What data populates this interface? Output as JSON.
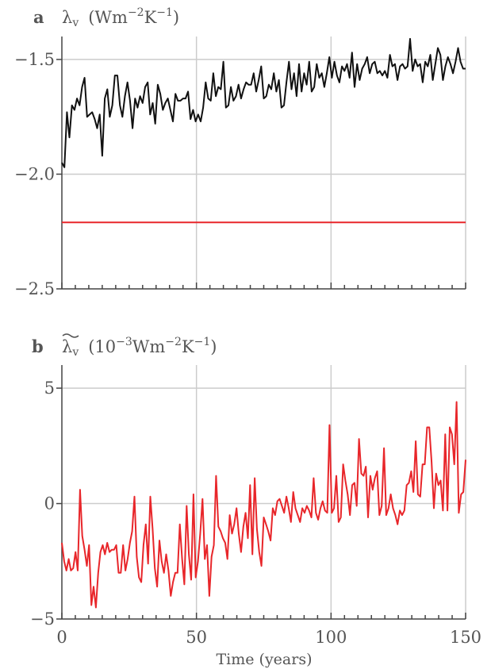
{
  "chart_data": [
    {
      "type": "line",
      "panel": "a",
      "title": "λv  (Wm−2K−1)",
      "title_parts": {
        "letter": "a",
        "symbol": "λ",
        "sub": "v",
        "unit_pre": "(Wm",
        "exp1": "−2",
        "unit_mid": "K",
        "exp2": "−1",
        "unit_post": ")"
      },
      "xlim": [
        0,
        150
      ],
      "ylim": [
        -2.5,
        -1.4
      ],
      "yticks": [
        -1.5,
        -2.0,
        -2.5
      ],
      "ytick_labels": [
        "−1.5",
        "−2.0",
        "−2.5"
      ],
      "xticks": [
        0,
        50,
        100,
        150
      ],
      "grid": true,
      "series": [
        {
          "color": "#111111",
          "values": [
            -1.95,
            -1.97,
            -1.73,
            -1.84,
            -1.7,
            -1.72,
            -1.67,
            -1.7,
            -1.62,
            -1.58,
            -1.75,
            -1.74,
            -1.73,
            -1.76,
            -1.8,
            -1.74,
            -1.92,
            -1.67,
            -1.63,
            -1.75,
            -1.7,
            -1.57,
            -1.57,
            -1.7,
            -1.75,
            -1.66,
            -1.6,
            -1.68,
            -1.8,
            -1.67,
            -1.71,
            -1.66,
            -1.69,
            -1.62,
            -1.6,
            -1.74,
            -1.69,
            -1.78,
            -1.61,
            -1.65,
            -1.72,
            -1.69,
            -1.67,
            -1.72,
            -1.77,
            -1.65,
            -1.68,
            -1.68,
            -1.67,
            -1.67,
            -1.64,
            -1.76,
            -1.72,
            -1.77,
            -1.74,
            -1.77,
            -1.71,
            -1.6,
            -1.67,
            -1.68,
            -1.56,
            -1.66,
            -1.62,
            -1.63,
            -1.51,
            -1.71,
            -1.7,
            -1.62,
            -1.68,
            -1.66,
            -1.61,
            -1.67,
            -1.63,
            -1.6,
            -1.61,
            -1.61,
            -1.56,
            -1.64,
            -1.59,
            -1.53,
            -1.67,
            -1.66,
            -1.61,
            -1.63,
            -1.56,
            -1.64,
            -1.59,
            -1.71,
            -1.7,
            -1.6,
            -1.51,
            -1.63,
            -1.56,
            -1.66,
            -1.52,
            -1.64,
            -1.56,
            -1.61,
            -1.51,
            -1.64,
            -1.62,
            -1.52,
            -1.58,
            -1.56,
            -1.62,
            -1.56,
            -1.49,
            -1.58,
            -1.51,
            -1.57,
            -1.6,
            -1.53,
            -1.55,
            -1.52,
            -1.58,
            -1.47,
            -1.62,
            -1.52,
            -1.59,
            -1.54,
            -1.52,
            -1.49,
            -1.56,
            -1.52,
            -1.51,
            -1.56,
            -1.55,
            -1.57,
            -1.55,
            -1.58,
            -1.48,
            -1.53,
            -1.52,
            -1.59,
            -1.53,
            -1.52,
            -1.54,
            -1.53,
            -1.41,
            -1.55,
            -1.5,
            -1.53,
            -1.52,
            -1.6,
            -1.51,
            -1.53,
            -1.48,
            -1.59,
            -1.52,
            -1.45,
            -1.48,
            -1.59,
            -1.53,
            -1.49,
            -1.52,
            -1.56,
            -1.51,
            -1.45,
            -1.51,
            -1.54,
            -1.54
          ]
        },
        {
          "color": "#e8262a",
          "values": [
            -2.21,
            -2.21,
            -2.21,
            -2.21,
            -2.21,
            -2.21,
            -2.21,
            -2.21,
            -2.21,
            -2.21,
            -2.21,
            -2.21,
            -2.21,
            -2.21,
            -2.21,
            -2.21,
            -2.21,
            -2.21,
            -2.21,
            -2.21,
            -2.21,
            -2.21,
            -2.21,
            -2.21,
            -2.21,
            -2.21,
            -2.21,
            -2.21,
            -2.21,
            -2.21,
            -2.21,
            -2.21,
            -2.21,
            -2.21,
            -2.21,
            -2.21,
            -2.21,
            -2.21,
            -2.21,
            -2.21,
            -2.21,
            -2.21,
            -2.21,
            -2.21,
            -2.21,
            -2.21,
            -2.21,
            -2.21,
            -2.21,
            -2.21,
            -2.21,
            -2.21,
            -2.21,
            -2.21,
            -2.21,
            -2.21,
            -2.21,
            -2.21,
            -2.21,
            -2.21,
            -2.21,
            -2.21,
            -2.21,
            -2.21,
            -2.21,
            -2.21,
            -2.21,
            -2.21,
            -2.21,
            -2.21,
            -2.21,
            -2.21,
            -2.21,
            -2.21,
            -2.21,
            -2.21,
            -2.21,
            -2.21,
            -2.21,
            -2.21,
            -2.21,
            -2.21,
            -2.21,
            -2.21,
            -2.21,
            -2.21,
            -2.21,
            -2.21,
            -2.21,
            -2.21,
            -2.21,
            -2.21,
            -2.21,
            -2.21,
            -2.21,
            -2.21,
            -2.21,
            -2.21,
            -2.21,
            -2.21,
            -2.21,
            -2.21,
            -2.21,
            -2.21,
            -2.21,
            -2.21,
            -2.21,
            -2.21,
            -2.21,
            -2.21,
            -2.21,
            -2.21,
            -2.21,
            -2.21,
            -2.21,
            -2.21,
            -2.21,
            -2.21,
            -2.21,
            -2.21,
            -2.21,
            -2.21,
            -2.21,
            -2.21,
            -2.21,
            -2.21,
            -2.21,
            -2.21,
            -2.21,
            -2.21,
            -2.21,
            -2.21,
            -2.21,
            -2.21,
            -2.21,
            -2.21,
            -2.21,
            -2.21,
            -2.21,
            -2.21,
            -2.21,
            -2.21,
            -2.21,
            -2.21,
            -2.21,
            -2.21,
            -2.21,
            -2.21,
            -2.21,
            -2.21,
            -2.21,
            -2.21,
            -2.21,
            -2.21,
            -2.21,
            -2.21,
            -2.21,
            -2.21,
            -2.21,
            -2.21
          ]
        }
      ]
    },
    {
      "type": "line",
      "panel": "b",
      "title": "λ̃v  (10−3Wm−2K−1)",
      "title_parts": {
        "letter": "b",
        "symbol": "λ",
        "sub": "v",
        "unit_pre": "(10",
        "exp0": "−3",
        "unit_a": "Wm",
        "exp1": "−2",
        "unit_mid": "K",
        "exp2": "−1",
        "unit_post": ")"
      },
      "xlabel": "Time (years)",
      "xlim": [
        0,
        150
      ],
      "ylim": [
        -5,
        6
      ],
      "yticks": [
        5,
        0,
        -5
      ],
      "ytick_labels": [
        "5",
        "0",
        "−5"
      ],
      "xticks": [
        0,
        50,
        100,
        150
      ],
      "xtick_labels": [
        "0",
        "50",
        "100",
        "150"
      ],
      "grid": true,
      "series": [
        {
          "color": "#e8262a",
          "values": [
            -1.7,
            -2.5,
            -2.9,
            -2.4,
            -2.9,
            -2.8,
            -2.1,
            -2.9,
            0.6,
            -1.4,
            -2.0,
            -2.7,
            -1.8,
            -4.4,
            -3.6,
            -4.5,
            -3.0,
            -2.1,
            -1.8,
            -2.2,
            -1.7,
            -2.1,
            -2.0,
            -2.0,
            -1.8,
            -3.0,
            -3.0,
            -1.8,
            -2.9,
            -2.4,
            -1.7,
            -1.2,
            0.3,
            -2.3,
            -3.2,
            -3.4,
            -1.8,
            -0.9,
            -2.6,
            0.3,
            -1.1,
            -2.8,
            -3.6,
            -1.6,
            -2.5,
            -3.0,
            -2.2,
            -2.9,
            -4.0,
            -3.4,
            -3.0,
            -3.0,
            -0.9,
            -2.4,
            -3.5,
            -0.1,
            -2.2,
            -3.3,
            0.4,
            -3.2,
            -2.5,
            -1.3,
            0.2,
            -2.4,
            -1.8,
            -4.0,
            -2.3,
            -1.8,
            1.2,
            -1.0,
            -1.2,
            -1.5,
            -1.7,
            -2.4,
            -0.5,
            -1.3,
            -0.9,
            -0.2,
            -1.3,
            -2.1,
            -1.0,
            -0.4,
            -1.5,
            0.8,
            -2.2,
            1.1,
            -1.1,
            -2.1,
            -2.7,
            -0.6,
            -0.9,
            -1.2,
            -1.6,
            -0.2,
            -0.5,
            0.1,
            0.2,
            -0.1,
            -0.4,
            0.3,
            -0.2,
            -0.8,
            0.5,
            -0.2,
            -0.5,
            -0.8,
            -0.2,
            -0.4,
            -0.1,
            -0.3,
            -0.6,
            1.1,
            -0.4,
            -0.7,
            -0.2,
            0.1,
            -0.3,
            -0.4,
            3.4,
            -0.4,
            -0.2,
            1.2,
            -0.8,
            -0.6,
            1.7,
            1.0,
            0.4,
            -0.5,
            0.8,
            0.9,
            -0.1,
            2.8,
            1.3,
            1.2,
            1.6,
            -0.6,
            1.2,
            0.6,
            1.1,
            1.4,
            -0.5,
            -0.1,
            2.4,
            -0.5,
            -0.2,
            0.4,
            -0.2,
            -0.5,
            -0.9,
            -0.3,
            -0.5,
            -0.3,
            0.8,
            0.9,
            1.4,
            0.5,
            2.7,
            0.4,
            0.3,
            1.7,
            1.7,
            3.3,
            3.3,
            1.8,
            -0.2,
            1.3,
            0.8,
            1.0,
            -0.3,
            3.0,
            -0.3,
            3.3,
            3.0,
            1.7,
            4.4,
            -0.4,
            0.4,
            0.5,
            1.9
          ]
        }
      ]
    }
  ]
}
